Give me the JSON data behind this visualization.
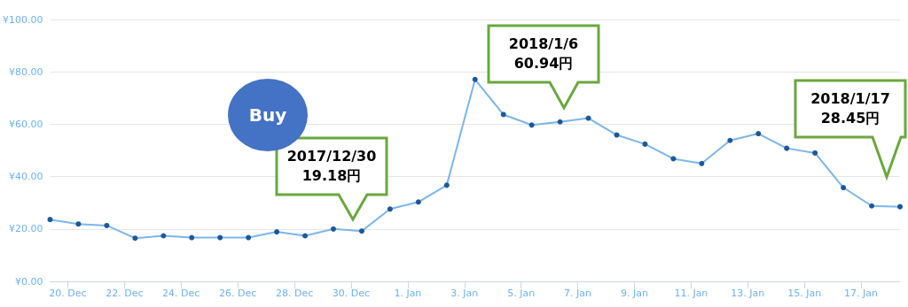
{
  "chart_data": {
    "type": "line",
    "x": [
      "2017-12-19T09:00",
      "2017-12-20T09:00",
      "2017-12-21T09:00",
      "2017-12-22T09:00",
      "2017-12-23T09:00",
      "2017-12-24T09:00",
      "2017-12-25T09:00",
      "2017-12-26T09:00",
      "2017-12-27T09:00",
      "2017-12-28T09:00",
      "2017-12-29T09:00",
      "2017-12-30T09:00",
      "2017-12-31T09:00",
      "2018-01-01T09:00",
      "2018-01-02T09:00",
      "2018-01-03T09:00",
      "2018-01-04T09:00",
      "2018-01-05T09:00",
      "2018-01-06T09:00",
      "2018-01-07T09:00",
      "2018-01-08T09:00",
      "2018-01-09T09:00",
      "2018-01-10T09:00",
      "2018-01-11T09:00",
      "2018-01-12T09:00",
      "2018-01-13T09:00",
      "2018-01-14T09:00",
      "2018-01-15T09:00",
      "2018-01-16T09:00",
      "2018-01-17T09:00",
      "2018-01-18T09:00"
    ],
    "series": [
      {
        "color": "#7cb5ec",
        "values": [
          23.6,
          21.9,
          21.3,
          16.5,
          17.4,
          16.7,
          16.7,
          16.7,
          18.9,
          17.4,
          20.0,
          19.2,
          27.6,
          30.3,
          36.7,
          77.1,
          63.7,
          59.7,
          60.9,
          62.3,
          55.9,
          52.4,
          46.8,
          45.0,
          53.8,
          56.4,
          50.8,
          49.0,
          35.8,
          28.8,
          28.5
        ]
      }
    ],
    "xlim": [
      "2017-12-19T09:00",
      "2018-01-18T09:00"
    ],
    "xticks": [
      {
        "value": "2017-12-20",
        "label": "20. Dec"
      },
      {
        "value": "2017-12-22",
        "label": "22. Dec"
      },
      {
        "value": "2017-12-24",
        "label": "24. Dec"
      },
      {
        "value": "2017-12-26",
        "label": "26. Dec"
      },
      {
        "value": "2017-12-28",
        "label": "28. Dec"
      },
      {
        "value": "2017-12-30",
        "label": "30. Dec"
      },
      {
        "value": "2018-01-01",
        "label": "1. Jan"
      },
      {
        "value": "2018-01-03",
        "label": "3. Jan"
      },
      {
        "value": "2018-01-05",
        "label": "5. Jan"
      },
      {
        "value": "2018-01-07",
        "label": "7. Jan"
      },
      {
        "value": "2018-01-09",
        "label": "9. Jan"
      },
      {
        "value": "2018-01-11",
        "label": "11. Jan"
      },
      {
        "value": "2018-01-13",
        "label": "13. Jan"
      },
      {
        "value": "2018-01-15",
        "label": "15. Jan"
      },
      {
        "value": "2018-01-17",
        "label": "17. Jan"
      }
    ],
    "ylim": [
      0,
      100
    ],
    "yticks": [
      {
        "value": 0,
        "label": "¥0.00"
      },
      {
        "value": 20,
        "label": "¥20.00"
      },
      {
        "value": 40,
        "label": "¥40.00"
      },
      {
        "value": 60,
        "label": "¥60.00"
      },
      {
        "value": 80,
        "label": "¥80.00"
      },
      {
        "value": 100,
        "label": "¥100.00"
      }
    ],
    "grid": "y",
    "marker": "circle",
    "annotations": [
      "2017/12/30\n19.18円",
      "2018/1/6\n60.94円",
      "2018/1/17\n28.45円",
      "Buy"
    ]
  }
}
